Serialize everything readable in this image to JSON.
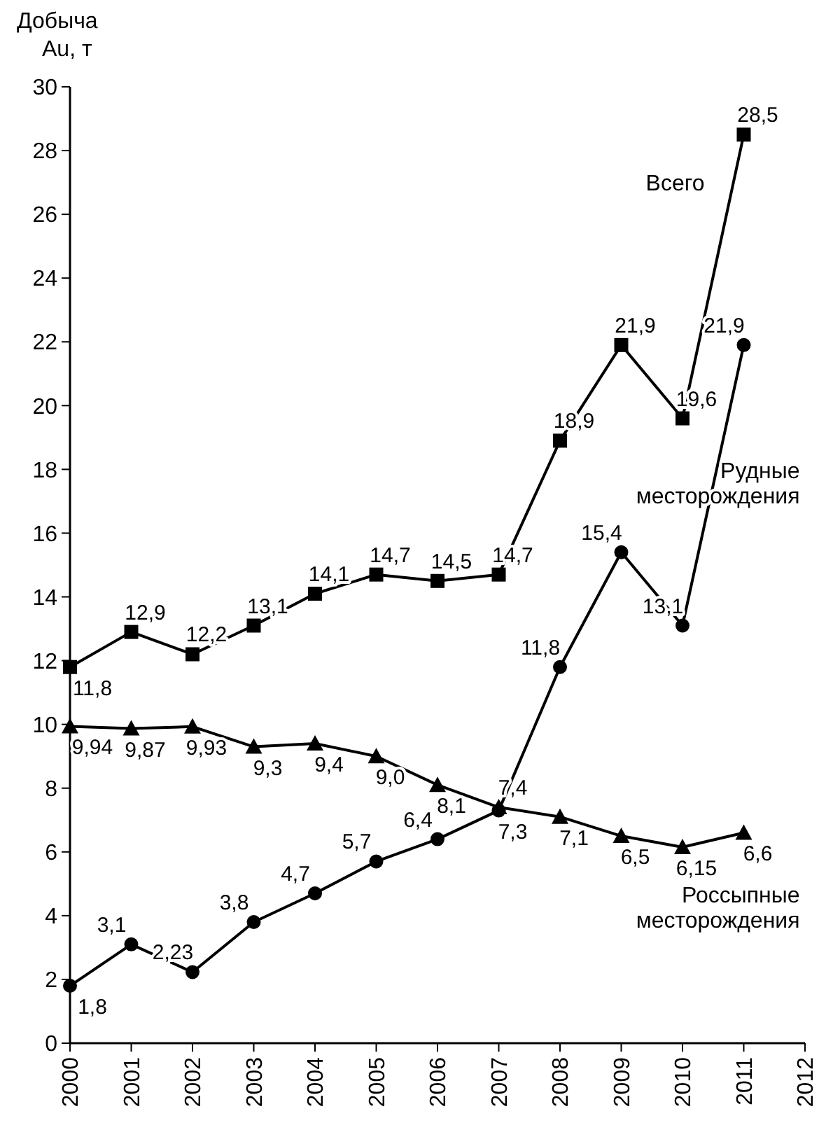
{
  "chart_data": {
    "type": "line",
    "ylabel": "Добыча Au, т",
    "x": [
      2000,
      2001,
      2002,
      2003,
      2004,
      2005,
      2006,
      2007,
      2008,
      2009,
      2010,
      2011
    ],
    "xlim": [
      2000,
      2012
    ],
    "xticks": [
      2000,
      2001,
      2002,
      2003,
      2004,
      2005,
      2006,
      2007,
      2008,
      2009,
      2010,
      2011,
      2012
    ],
    "ylim": [
      0,
      30
    ],
    "yticks": [
      0,
      2,
      4,
      6,
      8,
      10,
      12,
      14,
      16,
      18,
      20,
      22,
      24,
      26,
      28,
      30
    ],
    "grid": false,
    "line_style": "solid",
    "series": [
      {
        "name": "Всего",
        "color": "#000000",
        "marker": "square",
        "values": [
          11.8,
          12.9,
          12.2,
          13.1,
          14.1,
          14.7,
          14.5,
          14.7,
          18.9,
          21.9,
          19.6,
          28.5
        ],
        "value_labels": [
          "11,8",
          "12,9",
          "12,2",
          "13,1",
          "14,1",
          "14,7",
          "14,5",
          "14,7",
          "18,9",
          "21,9",
          "19,6",
          "28,5"
        ]
      },
      {
        "name": "Рудные месторождения",
        "color": "#000000",
        "marker": "circle",
        "values": [
          1.8,
          3.1,
          2.23,
          3.8,
          4.7,
          5.7,
          6.4,
          7.3,
          11.8,
          15.4,
          13.1,
          21.9
        ],
        "value_labels": [
          "1,8",
          "3,1",
          "2,23",
          "3,8",
          "4,7",
          "5,7",
          "6,4",
          "7,3",
          "11,8",
          "15,4",
          "13,1",
          "21,9"
        ]
      },
      {
        "name": "Россыпные месторождения",
        "color": "#000000",
        "marker": "triangle",
        "values": [
          9.94,
          9.87,
          9.93,
          9.3,
          9.4,
          9.0,
          8.1,
          7.4,
          7.1,
          6.5,
          6.15,
          6.6
        ],
        "value_labels": [
          "9,94",
          "9,87",
          "9,93",
          "9,3",
          "9,4",
          "9,0",
          "8,1",
          "7,4",
          "7,1",
          "6,5",
          "6,15",
          "6,6"
        ]
      }
    ]
  }
}
